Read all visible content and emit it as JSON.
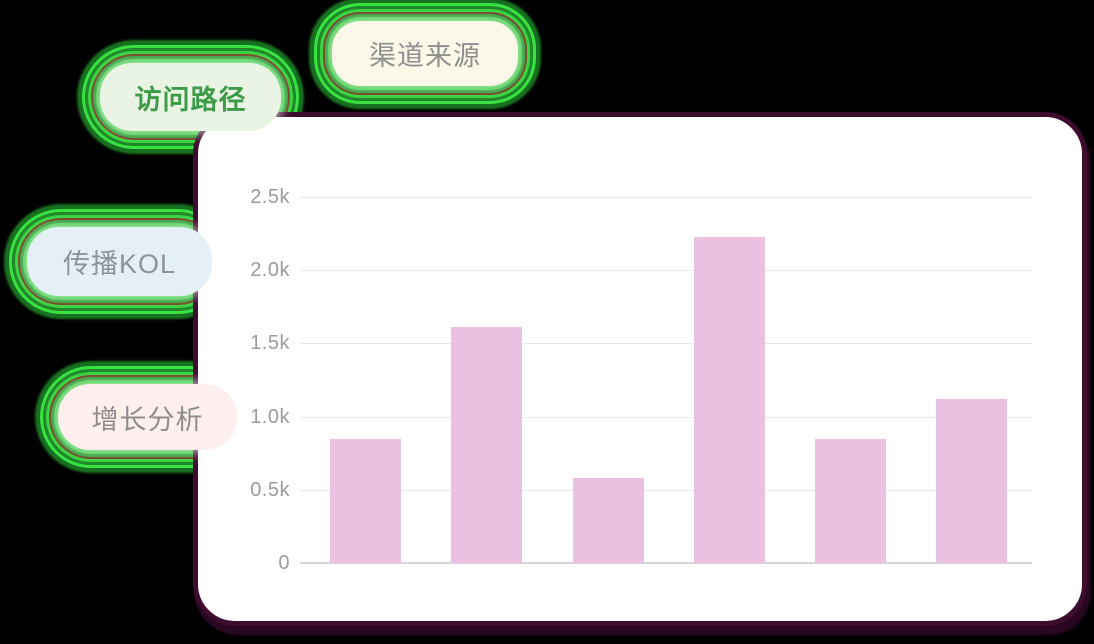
{
  "canvas": {
    "background_color": "#000000"
  },
  "card": {
    "background_color": "#ffffff",
    "border_color": "#3e0c2f"
  },
  "tags": [
    {
      "label": "渠道来源",
      "bg": "#fbf8ea",
      "text_color": "#8f8f8f",
      "active": false
    },
    {
      "label": "访问路径",
      "bg": "#e9f4e5",
      "text_color": "#3d9b47",
      "active": true
    },
    {
      "label": "传播KOL",
      "bg": "#e4f0f6",
      "text_color": "#8d9298",
      "active": false
    },
    {
      "label": "增长分析",
      "bg": "#fdefed",
      "text_color": "#8d8d8d",
      "active": false
    }
  ],
  "glow_colors": [
    "#33d23a",
    "#1e9629",
    "#6b3a16"
  ],
  "chart_data": {
    "type": "bar",
    "title": "",
    "xlabel": "",
    "ylabel": "",
    "values": [
      850,
      1610,
      580,
      2230,
      850,
      1120
    ],
    "y_tick_labels": [
      "2.5k",
      "2.0k",
      "1.5k",
      "1.0k",
      "0.5k",
      "0"
    ],
    "ylim": [
      0,
      2500
    ],
    "grid": true,
    "legend": false,
    "bar_color": "#eac1e1",
    "gridline_color": "#e8e8ec",
    "axisline_color": "#d5d5da",
    "tick_text_color": "#9a9aa0"
  }
}
